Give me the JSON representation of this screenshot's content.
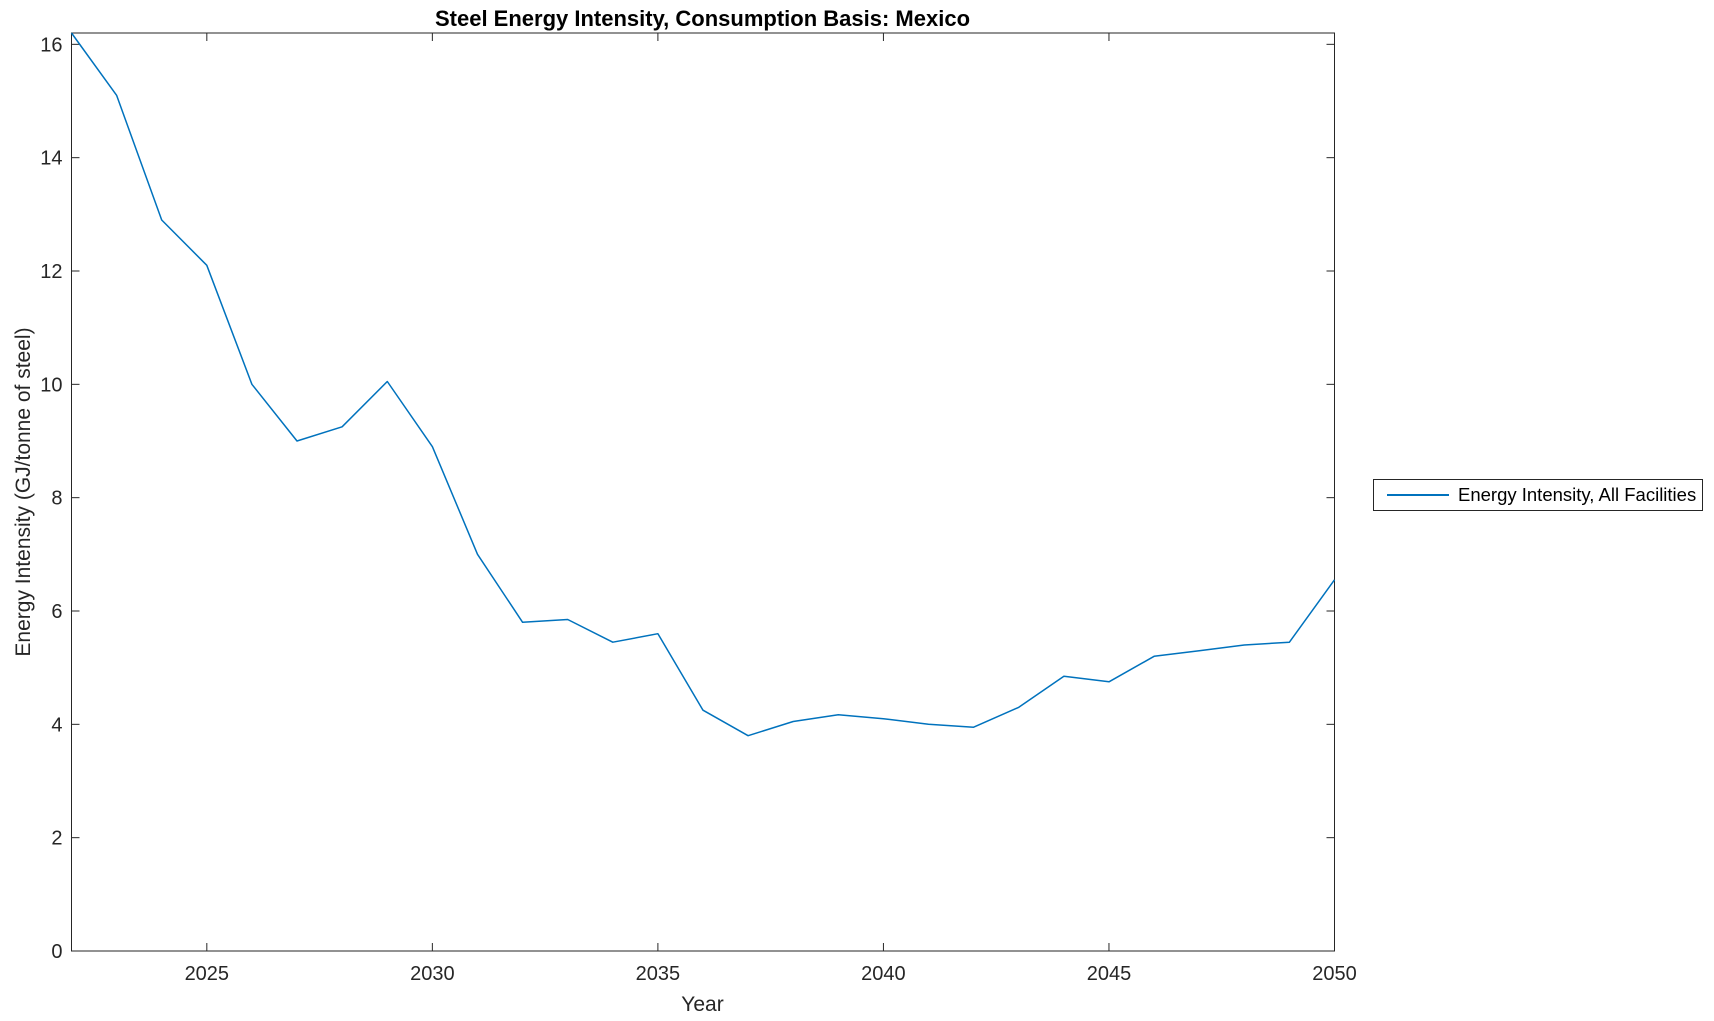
{
  "window": {
    "background": "#ffffff"
  },
  "chart_data": {
    "type": "line",
    "title": "Steel Energy Intensity, Consumption Basis: Mexico",
    "xlabel": "Year",
    "ylabel": "Energy Intensity (GJ/tonne of steel)",
    "x": [
      2022,
      2023,
      2024,
      2025,
      2026,
      2027,
      2028,
      2029,
      2030,
      2031,
      2032,
      2033,
      2034,
      2035,
      2036,
      2037,
      2038,
      2039,
      2040,
      2041,
      2042,
      2043,
      2044,
      2045,
      2046,
      2047,
      2048,
      2049,
      2050
    ],
    "series": [
      {
        "name": "Energy Intensity, All Facilities",
        "color": "#0072BD",
        "values": [
          16.2,
          15.1,
          12.9,
          12.1,
          10.0,
          9.0,
          9.25,
          10.05,
          8.9,
          7.0,
          5.8,
          5.85,
          5.45,
          5.6,
          4.25,
          3.8,
          4.05,
          4.17,
          4.1,
          4.0,
          3.95,
          4.3,
          4.85,
          4.75,
          5.2,
          5.3,
          5.4,
          5.45,
          6.55
        ]
      }
    ],
    "xlim": [
      2022,
      2050
    ],
    "ylim": [
      0,
      16.2
    ],
    "xticks": [
      2025,
      2030,
      2035,
      2040,
      2045,
      2050
    ],
    "yticks": [
      0,
      2,
      4,
      6,
      8,
      10,
      12,
      14,
      16
    ],
    "grid": false,
    "box": true,
    "tick_direction": "in",
    "legend_position": "outside-right",
    "axis_color": "#262626",
    "tick_label_color": "#262626",
    "tick_label_font_px": 20
  }
}
